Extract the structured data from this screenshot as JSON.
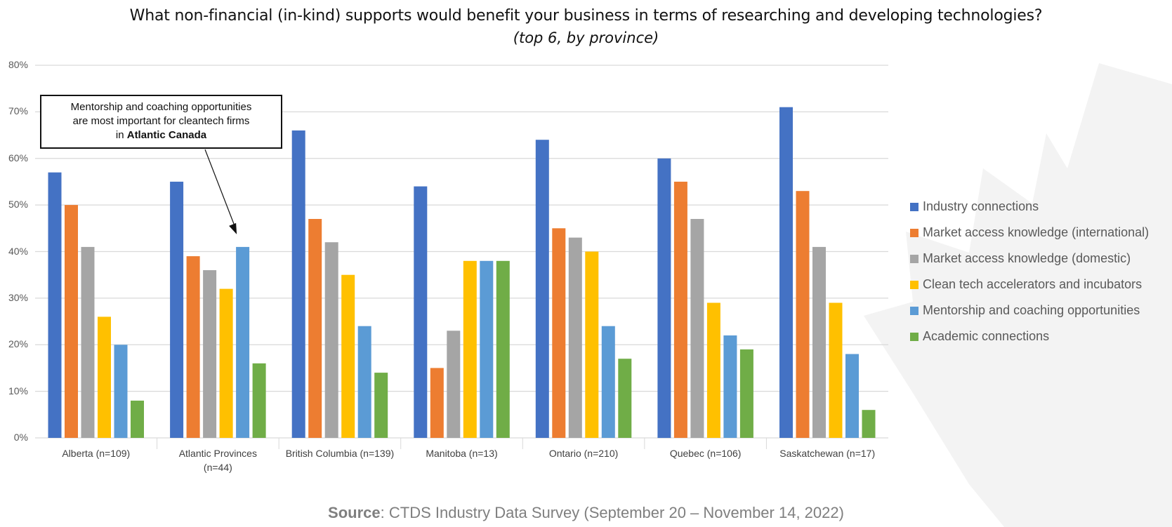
{
  "chart_data": {
    "type": "bar",
    "title": "What non-financial (in-kind) supports would benefit your business in terms of researching and developing technologies?",
    "subtitle": "(top 6, by province)",
    "xlabel": "",
    "ylabel": "",
    "ylim": [
      0,
      80
    ],
    "yticks": [
      0,
      10,
      20,
      30,
      40,
      50,
      60,
      70,
      80
    ],
    "ytick_labels": [
      "0%",
      "10%",
      "20%",
      "30%",
      "40%",
      "50%",
      "60%",
      "70%",
      "80%"
    ],
    "grid": true,
    "legend_position": "right",
    "categories": [
      "Alberta (n=109)",
      "Atlantic Provinces (n=44)",
      "British Columbia (n=139)",
      "Manitoba (n=13)",
      "Ontario (n=210)",
      "Quebec (n=106)",
      "Saskatchewan (n=17)"
    ],
    "series": [
      {
        "name": "Industry connections",
        "color": "#4472C4",
        "values": [
          57,
          55,
          66,
          54,
          64,
          60,
          71
        ]
      },
      {
        "name": "Market access knowledge (international)",
        "color": "#ED7D31",
        "values": [
          50,
          39,
          47,
          15,
          45,
          55,
          53
        ]
      },
      {
        "name": "Market access knowledge (domestic)",
        "color": "#A5A5A5",
        "values": [
          41,
          36,
          42,
          23,
          43,
          47,
          41
        ]
      },
      {
        "name": "Clean tech accelerators and incubators",
        "color": "#FFC000",
        "values": [
          26,
          32,
          35,
          38,
          40,
          29,
          29
        ]
      },
      {
        "name": "Mentorship and coaching opportunities",
        "color": "#5B9BD5",
        "values": [
          20,
          41,
          24,
          38,
          24,
          22,
          18
        ]
      },
      {
        "name": "Academic connections",
        "color": "#70AD47",
        "values": [
          8,
          16,
          14,
          38,
          17,
          19,
          6
        ]
      }
    ],
    "annotation": {
      "text_line1": "Mentorship and coaching opportunities",
      "text_line2": "are most important for cleantech firms",
      "text_line3_prefix": "in ",
      "text_line3_bold": "Atlantic Canada",
      "points_to_category": "Atlantic Provinces (n=44)",
      "points_to_series": "Mentorship and coaching opportunities"
    }
  },
  "xlabels": [
    {
      "line1": "Alberta (n=109)",
      "line2": ""
    },
    {
      "line1": "Atlantic Provinces",
      "line2": "(n=44)"
    },
    {
      "line1": "British Columbia (n=139)",
      "line2": ""
    },
    {
      "line1": "Manitoba (n=13)",
      "line2": ""
    },
    {
      "line1": "Ontario (n=210)",
      "line2": ""
    },
    {
      "line1": "Quebec (n=106)",
      "line2": ""
    },
    {
      "line1": "Saskatchewan (n=17)",
      "line2": ""
    }
  ],
  "source": {
    "label": "Source",
    "text": ": CTDS Industry Data Survey (September 20 – November 14, 2022)"
  },
  "colors": {
    "grid": "#D9D9D9",
    "watermark": "#F2F2F2"
  }
}
